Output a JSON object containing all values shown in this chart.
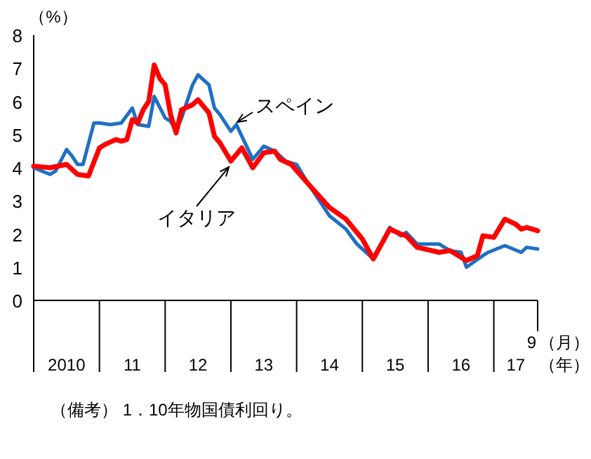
{
  "chart_data": {
    "type": "line",
    "ylabel": "（%）",
    "xlabel": "（年）",
    "annotations": [
      "9",
      "（月）",
      "（備考） 1．10年物国債利回り。"
    ],
    "xlim": [
      "2010-01",
      "2017-09"
    ],
    "ylim": [
      0,
      8
    ],
    "yticks": [
      0,
      1,
      2,
      3,
      4,
      5,
      6,
      7,
      8
    ],
    "xticks": [
      {
        "value": "2010-01",
        "label": null
      },
      {
        "value": "2010-07",
        "label": "2010"
      },
      {
        "value": "2011-01",
        "label": null
      },
      {
        "value": "2011-07",
        "label": "11"
      },
      {
        "value": "2012-01",
        "label": null
      },
      {
        "value": "2012-07",
        "label": "12"
      },
      {
        "value": "2013-01",
        "label": null
      },
      {
        "value": "2013-07",
        "label": "13"
      },
      {
        "value": "2014-01",
        "label": null
      },
      {
        "value": "2014-07",
        "label": "14"
      },
      {
        "value": "2015-01",
        "label": null
      },
      {
        "value": "2015-07",
        "label": "15"
      },
      {
        "value": "2016-01",
        "label": null
      },
      {
        "value": "2016-07",
        "label": "16"
      },
      {
        "value": "2017-01",
        "label": null
      },
      {
        "value": "2017-05",
        "label": "17"
      }
    ],
    "line_style": "solid",
    "series": [
      {
        "name": "スペイン",
        "color": "#1f6fc5",
        "x": [
          "2010-01",
          "2010-04",
          "2010-05",
          "2010-07",
          "2010-08",
          "2010-09",
          "2010-10",
          "2010-12",
          "2011-01",
          "2011-03",
          "2011-05",
          "2011-07",
          "2011-08",
          "2011-10",
          "2011-11",
          "2012-01",
          "2012-02",
          "2012-03",
          "2012-04",
          "2012-06",
          "2012-07",
          "2012-09",
          "2012-10",
          "2012-11",
          "2013-01",
          "2013-02",
          "2013-05",
          "2013-07",
          "2013-09",
          "2013-11",
          "2014-01",
          "2014-03",
          "2014-07",
          "2014-10",
          "2014-12",
          "2015-03",
          "2015-06",
          "2015-08",
          "2015-09",
          "2015-11",
          "2016-03",
          "2016-05",
          "2016-07",
          "2016-08",
          "2016-11",
          "2016-12",
          "2017-03",
          "2017-06",
          "2017-07",
          "2017-09"
        ],
        "values": [
          4.0,
          3.8,
          3.9,
          4.55,
          4.35,
          4.1,
          4.1,
          5.35,
          5.35,
          5.3,
          5.35,
          5.8,
          5.3,
          5.25,
          6.15,
          5.5,
          5.4,
          5.1,
          5.5,
          6.5,
          6.8,
          6.5,
          5.8,
          5.6,
          5.1,
          5.3,
          4.25,
          4.65,
          4.5,
          4.2,
          4.1,
          3.55,
          2.55,
          2.15,
          1.7,
          1.25,
          2.2,
          1.95,
          2.05,
          1.7,
          1.7,
          1.5,
          1.45,
          1.0,
          1.35,
          1.45,
          1.65,
          1.45,
          1.6,
          1.55
        ]
      },
      {
        "name": "イタリア",
        "color": "#ff0000",
        "x": [
          "2010-01",
          "2010-04",
          "2010-07",
          "2010-09",
          "2010-11",
          "2011-01",
          "2011-02",
          "2011-04",
          "2011-05",
          "2011-06",
          "2011-07",
          "2011-08",
          "2011-09",
          "2011-10",
          "2011-11",
          "2011-12",
          "2012-01",
          "2012-02",
          "2012-03",
          "2012-04",
          "2012-06",
          "2012-07",
          "2012-09",
          "2012-10",
          "2012-11",
          "2013-01",
          "2013-03",
          "2013-05",
          "2013-07",
          "2013-09",
          "2013-10",
          "2013-12",
          "2014-04",
          "2014-07",
          "2014-10",
          "2015-01",
          "2015-03",
          "2015-06",
          "2015-08",
          "2015-09",
          "2015-11",
          "2016-03",
          "2016-05",
          "2016-07",
          "2016-08",
          "2016-10",
          "2016-11",
          "2017-01",
          "2017-03",
          "2017-05",
          "2017-06",
          "2017-07",
          "2017-09"
        ],
        "values": [
          4.05,
          4.0,
          4.1,
          3.8,
          3.75,
          4.6,
          4.7,
          4.85,
          4.8,
          4.85,
          5.45,
          5.35,
          5.75,
          6.0,
          7.1,
          6.7,
          6.5,
          5.6,
          5.05,
          5.75,
          5.9,
          6.05,
          5.65,
          4.95,
          4.75,
          4.2,
          4.6,
          4.0,
          4.45,
          4.5,
          4.25,
          4.1,
          3.35,
          2.8,
          2.45,
          1.85,
          1.25,
          2.15,
          2.0,
          1.95,
          1.6,
          1.45,
          1.5,
          1.3,
          1.2,
          1.35,
          1.95,
          1.9,
          2.45,
          2.3,
          2.15,
          2.2,
          2.1
        ]
      }
    ]
  }
}
